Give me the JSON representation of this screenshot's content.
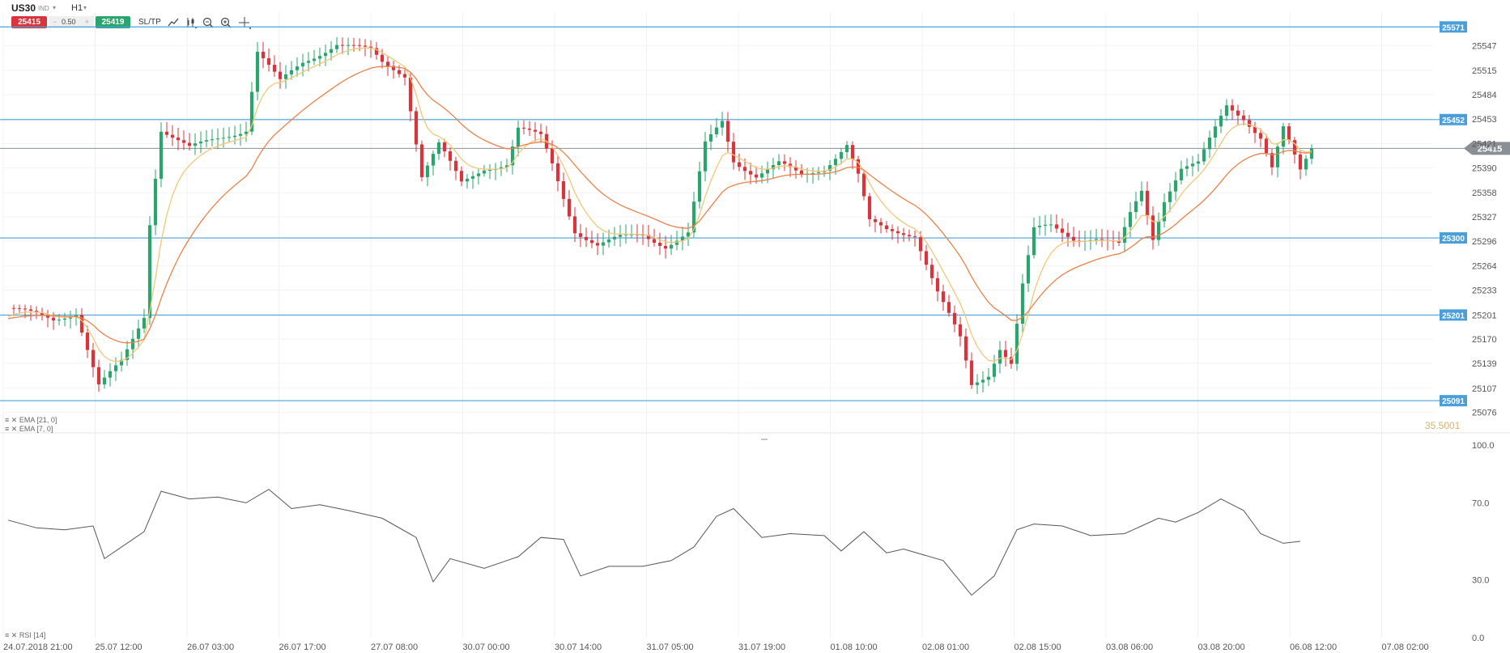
{
  "toolbar": {
    "symbol": "US30",
    "symbol_sub": "IND",
    "timeframe": "H1",
    "sell_price": "25415",
    "spread_minus": "−",
    "spread": "0.50",
    "spread_plus": "+",
    "buy_price": "25419",
    "sltp": "SL/TP",
    "tools": [
      "line-chart-icon",
      "candle-type-icon",
      "zoom-out-icon",
      "zoom-in-icon",
      "crosshair-icon"
    ]
  },
  "colors": {
    "bull": "#2aa56e",
    "bear": "#d9343b",
    "ema7": "#f2c777",
    "ema21": "#e9824a",
    "hline": "#4a9fdb",
    "current": "#8a8f96",
    "rsi": "#555555"
  },
  "indicators": {
    "ema21_label": "EMA [21, 0]",
    "ema7_label": "EMA [7, 0]",
    "rsi_label": "RSI [14]",
    "faded_value": "35.5001"
  },
  "chart_data": [
    {
      "type": "candlestick",
      "title": "US30 H1",
      "ylim": [
        25060,
        25590
      ],
      "y_ticks": [
        "25547",
        "25515",
        "25484",
        "25453",
        "25421",
        "25390",
        "25358",
        "25327",
        "25296",
        "25264",
        "25233",
        "25201",
        "25170",
        "25139",
        "25107",
        "25076"
      ],
      "x_ticks": [
        "24.07.2018 21:00",
        "25.07 12:00",
        "26.07 03:00",
        "26.07 17:00",
        "27.07 08:00",
        "30.07 00:00",
        "30.07 14:00",
        "31.07 05:00",
        "31.07 19:00",
        "01.08 10:00",
        "02.08 01:00",
        "02.08 15:00",
        "03.08 06:00",
        "03.08 20:00",
        "06.08 12:00",
        "07.08 02:00"
      ],
      "horizontal_lines": [
        25571,
        25452,
        25300,
        25201,
        25091
      ],
      "horizontal_line_labels": [
        "25571",
        "25452",
        "25300",
        "25201",
        "25091"
      ],
      "current_price": 25415,
      "current_price_label": "25415",
      "close_path": [
        {
          "bar": 0,
          "close": 25210
        },
        {
          "bar": 8,
          "close": 25195
        },
        {
          "bar": 12,
          "close": 25205
        },
        {
          "bar": 16,
          "close": 25110
        },
        {
          "bar": 20,
          "close": 25140
        },
        {
          "bar": 24,
          "close": 25200
        },
        {
          "bar": 25,
          "close": 25320
        },
        {
          "bar": 27,
          "close": 25440
        },
        {
          "bar": 32,
          "close": 25415
        },
        {
          "bar": 38,
          "close": 25430
        },
        {
          "bar": 42,
          "close": 25440
        },
        {
          "bar": 44,
          "close": 25540
        },
        {
          "bar": 48,
          "close": 25500
        },
        {
          "bar": 52,
          "close": 25525
        },
        {
          "bar": 58,
          "close": 25550
        },
        {
          "bar": 64,
          "close": 25540
        },
        {
          "bar": 66,
          "close": 25525
        },
        {
          "bar": 70,
          "close": 25510
        },
        {
          "bar": 73,
          "close": 25380
        },
        {
          "bar": 76,
          "close": 25420
        },
        {
          "bar": 80,
          "close": 25370
        },
        {
          "bar": 84,
          "close": 25390
        },
        {
          "bar": 88,
          "close": 25395
        },
        {
          "bar": 90,
          "close": 25440
        },
        {
          "bar": 94,
          "close": 25430
        },
        {
          "bar": 96,
          "close": 25395
        },
        {
          "bar": 100,
          "close": 25310
        },
        {
          "bar": 104,
          "close": 25290
        },
        {
          "bar": 108,
          "close": 25300
        },
        {
          "bar": 112,
          "close": 25305
        },
        {
          "bar": 116,
          "close": 25290
        },
        {
          "bar": 120,
          "close": 25305
        },
        {
          "bar": 123,
          "close": 25420
        },
        {
          "bar": 126,
          "close": 25450
        },
        {
          "bar": 128,
          "close": 25400
        },
        {
          "bar": 132,
          "close": 25380
        },
        {
          "bar": 136,
          "close": 25395
        },
        {
          "bar": 140,
          "close": 25380
        },
        {
          "bar": 144,
          "close": 25390
        },
        {
          "bar": 148,
          "close": 25420
        },
        {
          "bar": 150,
          "close": 25380
        },
        {
          "bar": 152,
          "close": 25320
        },
        {
          "bar": 155,
          "close": 25310
        },
        {
          "bar": 160,
          "close": 25305
        },
        {
          "bar": 164,
          "close": 25230
        },
        {
          "bar": 168,
          "close": 25170
        },
        {
          "bar": 170,
          "close": 25110
        },
        {
          "bar": 173,
          "close": 25125
        },
        {
          "bar": 175,
          "close": 25160
        },
        {
          "bar": 177,
          "close": 25140
        },
        {
          "bar": 179,
          "close": 25240
        },
        {
          "bar": 181,
          "close": 25310
        },
        {
          "bar": 184,
          "close": 25315
        },
        {
          "bar": 188,
          "close": 25300
        },
        {
          "bar": 192,
          "close": 25300
        },
        {
          "bar": 196,
          "close": 25290
        },
        {
          "bar": 198,
          "close": 25330
        },
        {
          "bar": 200,
          "close": 25360
        },
        {
          "bar": 202,
          "close": 25300
        },
        {
          "bar": 204,
          "close": 25350
        },
        {
          "bar": 207,
          "close": 25390
        },
        {
          "bar": 210,
          "close": 25395
        },
        {
          "bar": 213,
          "close": 25440
        },
        {
          "bar": 215,
          "close": 25470
        },
        {
          "bar": 218,
          "close": 25455
        },
        {
          "bar": 221,
          "close": 25430
        },
        {
          "bar": 223,
          "close": 25390
        },
        {
          "bar": 225,
          "close": 25440
        },
        {
          "bar": 228,
          "close": 25385
        },
        {
          "bar": 230,
          "close": 25415
        }
      ],
      "bars_total": 230
    },
    {
      "type": "line",
      "title": "RSI [14]",
      "ylim": [
        0,
        100
      ],
      "y_ticks": [
        "100.0",
        "70.0",
        "30.0",
        "0.0"
      ],
      "points": [
        {
          "bar": 0,
          "value": 61
        },
        {
          "bar": 5,
          "value": 57
        },
        {
          "bar": 10,
          "value": 56
        },
        {
          "bar": 15,
          "value": 58
        },
        {
          "bar": 17,
          "value": 41
        },
        {
          "bar": 20,
          "value": 47
        },
        {
          "bar": 24,
          "value": 55
        },
        {
          "bar": 27,
          "value": 76
        },
        {
          "bar": 32,
          "value": 72
        },
        {
          "bar": 37,
          "value": 73
        },
        {
          "bar": 42,
          "value": 70
        },
        {
          "bar": 46,
          "value": 77
        },
        {
          "bar": 50,
          "value": 67
        },
        {
          "bar": 55,
          "value": 69
        },
        {
          "bar": 60,
          "value": 66
        },
        {
          "bar": 66,
          "value": 62
        },
        {
          "bar": 72,
          "value": 52
        },
        {
          "bar": 75,
          "value": 29
        },
        {
          "bar": 78,
          "value": 41
        },
        {
          "bar": 84,
          "value": 36
        },
        {
          "bar": 90,
          "value": 42
        },
        {
          "bar": 94,
          "value": 52
        },
        {
          "bar": 98,
          "value": 51
        },
        {
          "bar": 101,
          "value": 32
        },
        {
          "bar": 106,
          "value": 37
        },
        {
          "bar": 112,
          "value": 37
        },
        {
          "bar": 117,
          "value": 40
        },
        {
          "bar": 121,
          "value": 47
        },
        {
          "bar": 125,
          "value": 63
        },
        {
          "bar": 128,
          "value": 67
        },
        {
          "bar": 133,
          "value": 52
        },
        {
          "bar": 138,
          "value": 54
        },
        {
          "bar": 144,
          "value": 53
        },
        {
          "bar": 147,
          "value": 45
        },
        {
          "bar": 151,
          "value": 55
        },
        {
          "bar": 155,
          "value": 44
        },
        {
          "bar": 158,
          "value": 46
        },
        {
          "bar": 165,
          "value": 40
        },
        {
          "bar": 170,
          "value": 22
        },
        {
          "bar": 174,
          "value": 32
        },
        {
          "bar": 178,
          "value": 56
        },
        {
          "bar": 181,
          "value": 59
        },
        {
          "bar": 186,
          "value": 58
        },
        {
          "bar": 191,
          "value": 53
        },
        {
          "bar": 197,
          "value": 54
        },
        {
          "bar": 200,
          "value": 58
        },
        {
          "bar": 203,
          "value": 62
        },
        {
          "bar": 206,
          "value": 60
        },
        {
          "bar": 210,
          "value": 65
        },
        {
          "bar": 214,
          "value": 72
        },
        {
          "bar": 218,
          "value": 66
        },
        {
          "bar": 221,
          "value": 54
        },
        {
          "bar": 225,
          "value": 49
        },
        {
          "bar": 228,
          "value": 50
        }
      ]
    }
  ]
}
